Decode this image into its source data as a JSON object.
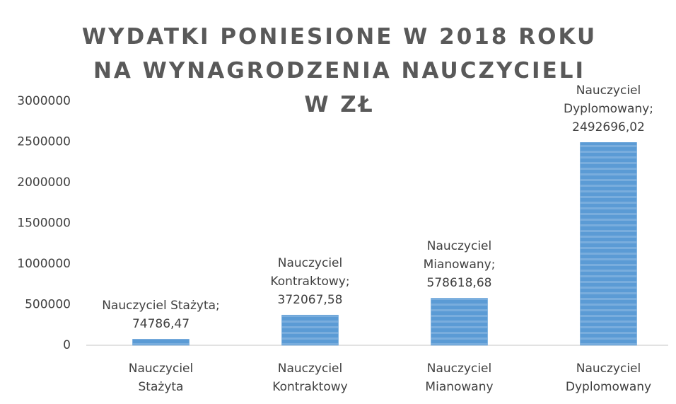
{
  "chart_data": {
    "type": "bar",
    "title": "WYDATKI PONIESIONE W 2018 ROKU NA WYNAGRODZENIA NAUCZYCIELI W ZŁ",
    "categories": [
      "Nauczyciel Stażyta",
      "Nauczyciel Kontraktowy",
      "Nauczyciel Mianowany",
      "Nauczyciel Dyplomowany"
    ],
    "values": [
      74786.47,
      372067.58,
      578618.68,
      2492696.02
    ],
    "value_labels": [
      "Nauczyciel Stażyta; 74786,47",
      "Nauczyciel Kontraktowy; 372067,58",
      "Nauczyciel Mianowany; 578618,68",
      "Nauczyciel Dyplomowany; 2492696,02"
    ],
    "color": "#5b9bd5",
    "ylim": [
      0,
      3000000
    ],
    "yticks": [
      0,
      500000,
      1000000,
      1500000,
      2000000,
      2500000,
      3000000
    ],
    "grid": false
  }
}
